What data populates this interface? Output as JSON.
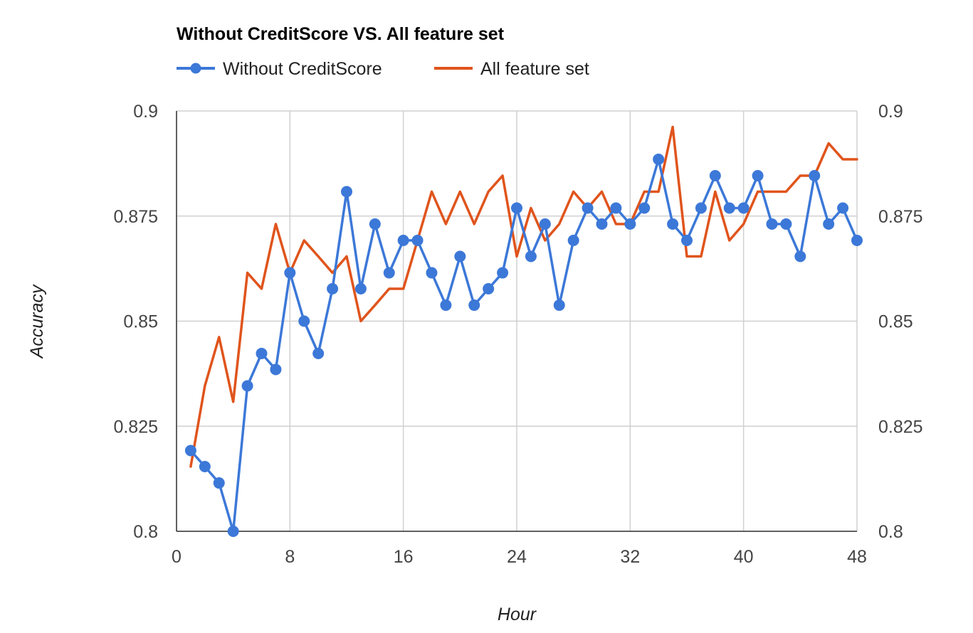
{
  "chart_data": {
    "type": "line",
    "title": "Without CreditScore VS. All feature set",
    "xlabel": "Hour",
    "ylabel": "Accuracy",
    "xlim": [
      0,
      48
    ],
    "ylim": [
      0.8,
      0.9
    ],
    "x_ticks": [
      "0",
      "8",
      "16",
      "24",
      "32",
      "40",
      "48"
    ],
    "y_ticks": [
      "0.8",
      "0.825",
      "0.85",
      "0.875",
      "0.9"
    ],
    "grid": true,
    "legend_position": "top-left",
    "x": [
      1,
      2,
      3,
      4,
      5,
      6,
      7,
      8,
      9,
      10,
      11,
      12,
      13,
      14,
      15,
      16,
      17,
      18,
      19,
      20,
      21,
      22,
      23,
      24,
      25,
      26,
      27,
      28,
      29,
      30,
      31,
      32,
      33,
      34,
      35,
      36,
      37,
      38,
      39,
      40,
      41,
      42,
      43,
      44,
      45,
      46,
      47,
      48
    ],
    "series": [
      {
        "name": "Without CreditScore",
        "color": "#3c78d8",
        "marker": "circle",
        "values": [
          0.8192,
          0.8154,
          0.8115,
          0.8,
          0.8346,
          0.8423,
          0.8385,
          0.8615,
          0.85,
          0.8423,
          0.8577,
          0.8808,
          0.8577,
          0.8731,
          0.8615,
          0.8692,
          0.8692,
          0.8615,
          0.8538,
          0.8654,
          0.8538,
          0.8577,
          0.8615,
          0.8769,
          0.8654,
          0.8731,
          0.8538,
          0.8692,
          0.8769,
          0.8731,
          0.8769,
          0.8731,
          0.8769,
          0.8885,
          0.8731,
          0.8692,
          0.8769,
          0.8846,
          0.8769,
          0.8769,
          0.8846,
          0.8731,
          0.8731,
          0.8654,
          0.8846,
          0.8731,
          0.8769,
          0.8692
        ]
      },
      {
        "name": "All feature set",
        "color": "#e0541c",
        "marker": "none",
        "values": [
          0.8154,
          0.8346,
          0.8462,
          0.8308,
          0.8615,
          0.8577,
          0.8731,
          0.8615,
          0.8692,
          0.8654,
          0.8615,
          0.8654,
          0.85,
          0.8538,
          0.8577,
          0.8577,
          0.8692,
          0.8808,
          0.8731,
          0.8808,
          0.8731,
          0.8808,
          0.8846,
          0.8654,
          0.8769,
          0.8692,
          0.8731,
          0.8808,
          0.8769,
          0.8808,
          0.8731,
          0.8731,
          0.8808,
          0.8808,
          0.8962,
          0.8654,
          0.8654,
          0.8808,
          0.8692,
          0.8731,
          0.8808,
          0.8808,
          0.8808,
          0.8846,
          0.8846,
          0.8923,
          0.8885,
          0.8885
        ]
      }
    ]
  }
}
